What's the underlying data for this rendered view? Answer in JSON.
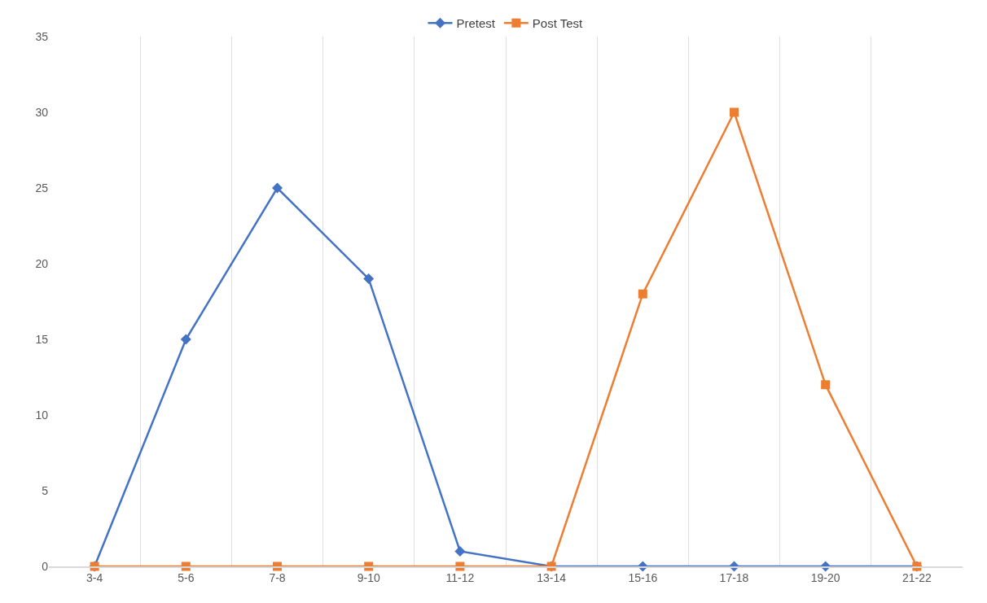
{
  "chart_data": {
    "type": "line",
    "categories": [
      "3-4",
      "5-6",
      "7-8",
      "9-10",
      "11-12",
      "13-14",
      "15-16",
      "17-18",
      "19-20",
      "21-22"
    ],
    "series": [
      {
        "name": "Pretest",
        "color": "#4472c4",
        "marker": "diamond",
        "values": [
          0,
          15,
          25,
          19,
          1,
          0,
          0,
          0,
          0,
          0
        ]
      },
      {
        "name": "Post Test",
        "color": "#ed7d31",
        "marker": "square",
        "values": [
          0,
          0,
          0,
          0,
          0,
          0,
          18,
          30,
          12,
          0
        ]
      }
    ],
    "ylim": [
      0,
      35
    ],
    "yticks": [
      0,
      5,
      10,
      15,
      20,
      25,
      30,
      35
    ],
    "grid": "x",
    "legend": "top",
    "line_style": "solid"
  }
}
